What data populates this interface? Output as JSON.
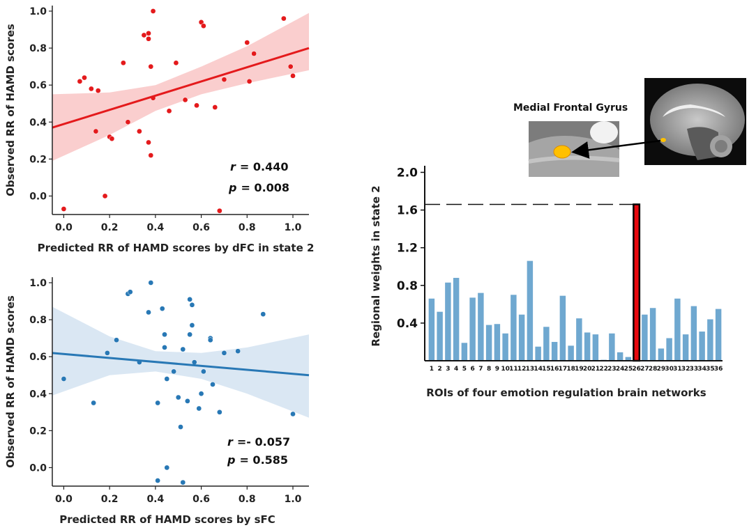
{
  "chart_data": [
    {
      "type": "scatter",
      "id": "dfc",
      "xlabel": "Predicted RR of HAMD scores by dFC in state 2",
      "ylabel": "Observed RR of HAMD scores",
      "xlim": [
        -0.05,
        1.07
      ],
      "ylim": [
        -0.1,
        1.03
      ],
      "xticks": [
        "0.0",
        "0.2",
        "0.4",
        "0.6",
        "0.8",
        "1.0"
      ],
      "yticks": [
        "0.0",
        "0.2",
        "0.4",
        "0.6",
        "0.8",
        "1.0"
      ],
      "color": "#e41a1c",
      "band_color": "#f9c6c6",
      "stats": {
        "r_label": "r",
        "r_value": "= 0.440",
        "p_label": "p",
        "p_value": "= 0.008"
      },
      "fit": {
        "x0": -0.05,
        "y0": 0.37,
        "x1": 1.07,
        "y1": 0.8
      },
      "band": {
        "x": [
          -0.05,
          0.2,
          0.4,
          0.6,
          0.8,
          1.07
        ],
        "lo": [
          0.19,
          0.33,
          0.46,
          0.55,
          0.61,
          0.68
        ],
        "hi": [
          0.55,
          0.56,
          0.6,
          0.7,
          0.81,
          0.99
        ]
      },
      "points": [
        [
          0.0,
          -0.07
        ],
        [
          0.07,
          0.62
        ],
        [
          0.09,
          0.64
        ],
        [
          0.12,
          0.58
        ],
        [
          0.15,
          0.57
        ],
        [
          0.14,
          0.35
        ],
        [
          0.18,
          0.0
        ],
        [
          0.2,
          0.32
        ],
        [
          0.21,
          0.31
        ],
        [
          0.26,
          0.72
        ],
        [
          0.28,
          0.4
        ],
        [
          0.33,
          0.35
        ],
        [
          0.35,
          0.87
        ],
        [
          0.37,
          0.29
        ],
        [
          0.37,
          0.88
        ],
        [
          0.37,
          0.85
        ],
        [
          0.38,
          0.22
        ],
        [
          0.38,
          0.7
        ],
        [
          0.39,
          0.53
        ],
        [
          0.39,
          1.0
        ],
        [
          0.46,
          0.46
        ],
        [
          0.49,
          0.72
        ],
        [
          0.53,
          0.52
        ],
        [
          0.58,
          0.49
        ],
        [
          0.6,
          0.94
        ],
        [
          0.61,
          0.92
        ],
        [
          0.66,
          0.48
        ],
        [
          0.68,
          -0.08
        ],
        [
          0.7,
          0.63
        ],
        [
          0.8,
          0.83
        ],
        [
          0.81,
          0.62
        ],
        [
          0.83,
          0.77
        ],
        [
          0.96,
          0.96
        ],
        [
          0.99,
          0.7
        ],
        [
          1.0,
          0.65
        ]
      ]
    },
    {
      "type": "scatter",
      "id": "sfc",
      "xlabel": "Predicted RR of HAMD scores by sFC",
      "ylabel": "Observed RR of HAMD scores",
      "xlim": [
        -0.05,
        1.07
      ],
      "ylim": [
        -0.1,
        1.03
      ],
      "xticks": [
        "0.0",
        "0.2",
        "0.4",
        "0.6",
        "0.8",
        "1.0"
      ],
      "yticks": [
        "0.0",
        "0.2",
        "0.4",
        "0.6",
        "0.8",
        "1.0"
      ],
      "color": "#2878b5",
      "band_color": "#d3e3f1",
      "stats": {
        "r_label": "r",
        "r_value": "=- 0.057",
        "p_label": "p",
        "p_value": "=  0.585"
      },
      "fit": {
        "x0": -0.05,
        "y0": 0.62,
        "x1": 1.07,
        "y1": 0.5
      },
      "band": {
        "x": [
          -0.05,
          0.2,
          0.4,
          0.6,
          0.8,
          1.07
        ],
        "lo": [
          0.39,
          0.5,
          0.52,
          0.48,
          0.4,
          0.27
        ],
        "hi": [
          0.87,
          0.71,
          0.63,
          0.62,
          0.65,
          0.72
        ]
      },
      "points": [
        [
          0.0,
          0.48
        ],
        [
          0.13,
          0.35
        ],
        [
          0.19,
          0.62
        ],
        [
          0.23,
          0.69
        ],
        [
          0.28,
          0.94
        ],
        [
          0.29,
          0.95
        ],
        [
          0.33,
          0.57
        ],
        [
          0.37,
          0.84
        ],
        [
          0.38,
          1.0
        ],
        [
          0.41,
          -0.07
        ],
        [
          0.41,
          0.35
        ],
        [
          0.43,
          0.86
        ],
        [
          0.44,
          0.72
        ],
        [
          0.44,
          0.65
        ],
        [
          0.45,
          0.48
        ],
        [
          0.45,
          0.0
        ],
        [
          0.48,
          0.52
        ],
        [
          0.5,
          0.38
        ],
        [
          0.51,
          0.22
        ],
        [
          0.52,
          -0.08
        ],
        [
          0.52,
          0.64
        ],
        [
          0.54,
          0.36
        ],
        [
          0.55,
          0.91
        ],
        [
          0.55,
          0.72
        ],
        [
          0.56,
          0.88
        ],
        [
          0.56,
          0.77
        ],
        [
          0.57,
          0.57
        ],
        [
          0.59,
          0.32
        ],
        [
          0.6,
          0.4
        ],
        [
          0.61,
          0.52
        ],
        [
          0.64,
          0.7
        ],
        [
          0.64,
          0.69
        ],
        [
          0.65,
          0.45
        ],
        [
          0.68,
          0.3
        ],
        [
          0.7,
          0.62
        ],
        [
          0.76,
          0.63
        ],
        [
          0.87,
          0.83
        ],
        [
          1.0,
          0.29
        ]
      ]
    },
    {
      "type": "bar",
      "id": "weights",
      "xlabel": "ROIs of four emotion regulation brain networks",
      "ylabel": "Regional weights  in state 2",
      "ylim": [
        0,
        2.07
      ],
      "yticks": [
        "0.4",
        "0.8",
        "1.2",
        "1.6",
        "2.0"
      ],
      "bar_color": "#6fa8d0",
      "highlight_color": "#e8090f",
      "highlight_index": 25,
      "reference_value": 1.66,
      "categories": [
        "1",
        "2",
        "3",
        "4",
        "5",
        "6",
        "7",
        "8",
        "9",
        "10",
        "11",
        "12",
        "13",
        "14",
        "15",
        "16",
        "17",
        "18",
        "19",
        "20",
        "21",
        "22",
        "23",
        "24",
        "25",
        "26",
        "27",
        "28",
        "29",
        "30",
        "31",
        "32",
        "33",
        "34",
        "35",
        "36"
      ],
      "values": [
        0.66,
        0.52,
        0.83,
        0.88,
        0.19,
        0.67,
        0.72,
        0.38,
        0.39,
        0.29,
        0.7,
        0.49,
        1.06,
        0.15,
        0.36,
        0.2,
        0.69,
        0.16,
        0.45,
        0.3,
        0.28,
        0.01,
        0.29,
        0.09,
        0.04,
        1.66,
        0.49,
        0.56,
        0.13,
        0.24,
        0.66,
        0.28,
        0.58,
        0.31,
        0.44,
        0.55
      ]
    }
  ],
  "callout": {
    "label": "Medial Frontal Gyrus"
  }
}
